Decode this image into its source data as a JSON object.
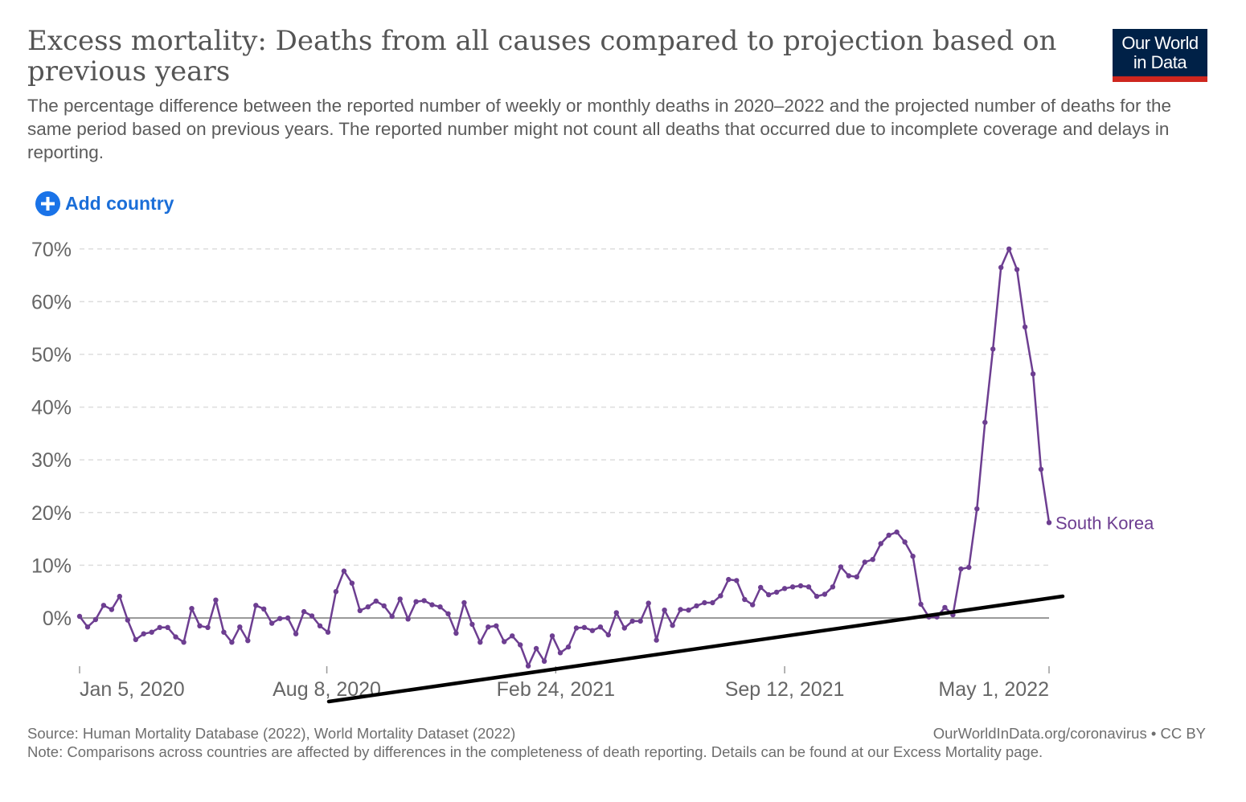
{
  "header": {
    "title": "Excess mortality: Deaths from all causes compared to projection based on previous years",
    "subtitle": "The percentage difference between the reported number of weekly or monthly deaths in 2020–2022 and the projected number of deaths for the same period based on previous years. The reported number might not count all deaths that occurred due to incomplete coverage and delays in reporting.",
    "logo_line1": "Our World",
    "logo_line2": "in Data"
  },
  "controls": {
    "add_country_label": "Add country",
    "add_icon": "plus-circle-icon"
  },
  "footer": {
    "source": "Source: Human Mortality Database (2022), World Mortality Dataset (2022)",
    "note": "Note: Comparisons across countries are affected by differences in the completeness of death reporting. Details can be found at our Excess Mortality page.",
    "credit": "OurWorldInData.org/coronavirus • CC BY"
  },
  "colors": {
    "series": "#6d3e91",
    "title": "#555555",
    "grid": "#dddddd",
    "axis": "#9a9a9a",
    "logo_bg": "#002147",
    "logo_bar": "#ce261e",
    "add_button": "#1a73e8",
    "annotation": "#000000"
  },
  "chart_data": {
    "type": "line",
    "title": "",
    "xlabel": "",
    "ylabel": "",
    "ylim": [
      -10,
      70
    ],
    "y_ticks": [
      0,
      10,
      20,
      30,
      40,
      50,
      60,
      70
    ],
    "y_tick_labels": [
      "0%",
      "10%",
      "20%",
      "30%",
      "40%",
      "50%",
      "60%",
      "70%"
    ],
    "x_ticks": [
      "2020-01-05",
      "2020-08-08",
      "2021-02-24",
      "2021-09-12",
      "2022-05-01"
    ],
    "x_tick_labels": [
      "Jan 5, 2020",
      "Aug 8, 2020",
      "Feb 24, 2021",
      "Sep 12, 2021",
      "May 1, 2022"
    ],
    "grid": "horizontal dashed",
    "annotation": "hand-drawn black straight line from about Aug 2020 (-16%) rising to about May 2022 (4%)",
    "series": [
      {
        "name": "South Korea",
        "x_start": "2020-01-05",
        "step_days": 7,
        "values": [
          0.3,
          -1.7,
          -0.3,
          2.4,
          1.6,
          4.1,
          -0.4,
          -4.1,
          -3.0,
          -2.7,
          -1.8,
          -1.8,
          -3.6,
          -4.6,
          1.8,
          -1.5,
          -1.8,
          3.4,
          -2.7,
          -4.6,
          -1.7,
          -4.3,
          2.4,
          1.7,
          -1.0,
          -0.1,
          0.0,
          -3.0,
          1.2,
          0.4,
          -1.5,
          -2.7,
          5.0,
          8.9,
          6.6,
          1.4,
          2.1,
          3.2,
          2.3,
          0.3,
          3.6,
          -0.2,
          3.1,
          3.3,
          2.5,
          2.1,
          0.8,
          -2.9,
          2.9,
          -1.2,
          -4.6,
          -1.7,
          -1.5,
          -4.5,
          -3.4,
          -5.1,
          -9.1,
          -5.8,
          -8.2,
          -3.4,
          -6.6,
          -5.5,
          -1.9,
          -1.8,
          -2.4,
          -1.7,
          -3.2,
          1.0,
          -1.9,
          -0.6,
          -0.6,
          2.8,
          -4.2,
          1.5,
          -1.4,
          1.6,
          1.5,
          2.3,
          2.9,
          2.9,
          4.2,
          7.3,
          7.1,
          3.5,
          2.5,
          5.8,
          4.4,
          4.9,
          5.6,
          5.9,
          6.1,
          5.9,
          4.1,
          4.5,
          5.9,
          9.7,
          8.0,
          7.8,
          10.6,
          11.1,
          14.1,
          15.7,
          16.3,
          14.4,
          11.7,
          2.6,
          0.2,
          0.2,
          2.0,
          0.6,
          9.3,
          9.6,
          20.7,
          37.1,
          51.0,
          66.5,
          70.0,
          66.1,
          55.2,
          46.3,
          28.2,
          18.1
        ]
      }
    ]
  }
}
